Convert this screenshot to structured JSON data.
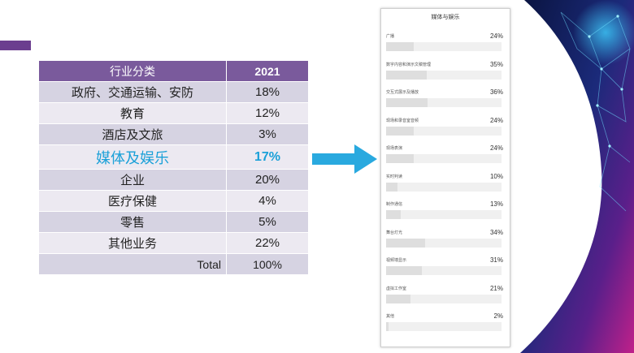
{
  "table": {
    "header": {
      "category": "行业分类",
      "year": "2021"
    },
    "rows": [
      {
        "category": "政府、交通运输、安防",
        "value": "18%"
      },
      {
        "category": "教育",
        "value": "12%"
      },
      {
        "category": "酒店及文旅",
        "value": "3%"
      },
      {
        "category": "媒体及娱乐",
        "value": "17%"
      },
      {
        "category": "企业",
        "value": "20%"
      },
      {
        "category": "医疗保健",
        "value": "4%"
      },
      {
        "category": "零售",
        "value": "5%"
      },
      {
        "category": "其他业务",
        "value": "22%"
      }
    ],
    "total": {
      "label": "Total",
      "value": "100%"
    },
    "highlight_color": "#1aa0d8",
    "header_color": "#7a5a9c"
  },
  "arrow_color": "#29a9df",
  "panel": {
    "title": "媒体与娱乐",
    "items": [
      {
        "label": "广播",
        "pct_text": "24%",
        "fraction": 0.24
      },
      {
        "label": "数字内容和演示文稿管理",
        "pct_text": "35%",
        "fraction": 0.35
      },
      {
        "label": "交互式展示及播放",
        "pct_text": "36%",
        "fraction": 0.36
      },
      {
        "label": "现场和录音室音频",
        "pct_text": "24%",
        "fraction": 0.24
      },
      {
        "label": "现场表演",
        "pct_text": "24%",
        "fraction": 0.24
      },
      {
        "label": "实时判读",
        "pct_text": "10%",
        "fraction": 0.1
      },
      {
        "label": "制作通信",
        "pct_text": "13%",
        "fraction": 0.13
      },
      {
        "label": "舞台灯光",
        "pct_text": "34%",
        "fraction": 0.34
      },
      {
        "label": "视频墙显示",
        "pct_text": "31%",
        "fraction": 0.31
      },
      {
        "label": "虚拟工作室",
        "pct_text": "21%",
        "fraction": 0.21
      },
      {
        "label": "其他",
        "pct_text": "2%",
        "fraction": 0.02
      }
    ]
  }
}
